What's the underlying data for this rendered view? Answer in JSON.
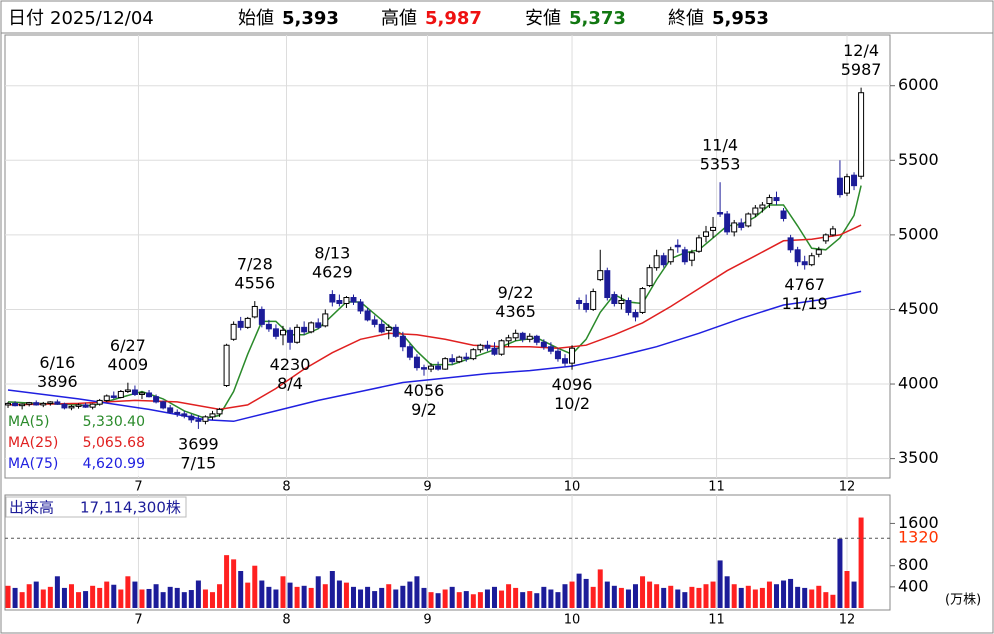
{
  "header": {
    "date_label": "日付",
    "date": "2025/12/04",
    "open_label": "始値",
    "open": "5,393",
    "high_label": "高値",
    "high": "5,987",
    "low_label": "安値",
    "low": "5,373",
    "close_label": "終値",
    "close": "5,953"
  },
  "chart_data": {
    "type": "candlestick",
    "xlim": [
      -0.43,
      125.1
    ],
    "xticks": [
      {
        "value": 18.5,
        "label": "7"
      },
      {
        "value": 39.5,
        "label": "8"
      },
      {
        "value": 59.5,
        "label": "9"
      },
      {
        "value": 80,
        "label": "10"
      },
      {
        "value": 100.5,
        "label": "11"
      },
      {
        "value": 119,
        "label": "12"
      }
    ],
    "ylim": [
      3370,
      6340
    ],
    "yticks": [
      3500,
      4000,
      4500,
      5000,
      5500,
      6000
    ],
    "grid": true,
    "candle_colors": {
      "up": "#ffffff",
      "down": "#1c1c99"
    },
    "ohlc": [
      [
        3860,
        3880,
        3840,
        3870
      ],
      [
        3870,
        3885,
        3850,
        3855
      ],
      [
        3855,
        3870,
        3830,
        3865
      ],
      [
        3865,
        3880,
        3850,
        3875
      ],
      [
        3875,
        3890,
        3855,
        3860
      ],
      [
        3860,
        3880,
        3845,
        3870
      ],
      [
        3870,
        3885,
        3855,
        3880
      ],
      [
        3880,
        3896,
        3860,
        3865
      ],
      [
        3865,
        3875,
        3830,
        3840
      ],
      [
        3840,
        3860,
        3820,
        3850
      ],
      [
        3850,
        3870,
        3835,
        3860
      ],
      [
        3860,
        3875,
        3840,
        3845
      ],
      [
        3845,
        3870,
        3830,
        3865
      ],
      [
        3865,
        3900,
        3855,
        3890
      ],
      [
        3890,
        3930,
        3880,
        3920
      ],
      [
        3920,
        3950,
        3900,
        3910
      ],
      [
        3910,
        3960,
        3905,
        3950
      ],
      [
        3950,
        4009,
        3940,
        3960
      ],
      [
        3960,
        3990,
        3920,
        3930
      ],
      [
        3930,
        3950,
        3900,
        3940
      ],
      [
        3940,
        3960,
        3910,
        3915
      ],
      [
        3915,
        3930,
        3870,
        3880
      ],
      [
        3880,
        3890,
        3830,
        3840
      ],
      [
        3840,
        3860,
        3800,
        3810
      ],
      [
        3810,
        3830,
        3780,
        3800
      ],
      [
        3800,
        3820,
        3770,
        3785
      ],
      [
        3785,
        3800,
        3740,
        3760
      ],
      [
        3760,
        3790,
        3699,
        3750
      ],
      [
        3750,
        3790,
        3730,
        3780
      ],
      [
        3780,
        3820,
        3760,
        3800
      ],
      [
        3800,
        3840,
        3780,
        3830
      ],
      [
        3990,
        4270,
        3980,
        4260
      ],
      [
        4300,
        4420,
        4290,
        4400
      ],
      [
        4420,
        4450,
        4360,
        4380
      ],
      [
        4380,
        4450,
        4370,
        4440
      ],
      [
        4450,
        4556,
        4440,
        4520
      ],
      [
        4500,
        4520,
        4380,
        4400
      ],
      [
        4400,
        4430,
        4350,
        4370
      ],
      [
        4370,
        4400,
        4300,
        4320
      ],
      [
        4330,
        4390,
        4260,
        4360
      ],
      [
        4360,
        4380,
        4230,
        4280
      ],
      [
        4280,
        4400,
        4270,
        4380
      ],
      [
        4380,
        4420,
        4330,
        4350
      ],
      [
        4350,
        4420,
        4340,
        4410
      ],
      [
        4410,
        4440,
        4370,
        4380
      ],
      [
        4390,
        4500,
        4380,
        4470
      ],
      [
        4600,
        4629,
        4520,
        4550
      ],
      [
        4560,
        4600,
        4520,
        4540
      ],
      [
        4540,
        4590,
        4510,
        4580
      ],
      [
        4580,
        4600,
        4530,
        4550
      ],
      [
        4550,
        4570,
        4470,
        4490
      ],
      [
        4490,
        4510,
        4420,
        4430
      ],
      [
        4430,
        4460,
        4380,
        4400
      ],
      [
        4400,
        4430,
        4340,
        4350
      ],
      [
        4360,
        4400,
        4300,
        4380
      ],
      [
        4380,
        4400,
        4310,
        4320
      ],
      [
        4320,
        4350,
        4220,
        4250
      ],
      [
        4250,
        4270,
        4160,
        4180
      ],
      [
        4180,
        4200,
        4090,
        4110
      ],
      [
        4110,
        4130,
        4056,
        4100
      ],
      [
        4100,
        4140,
        4080,
        4120
      ],
      [
        4120,
        4150,
        4090,
        4100
      ],
      [
        4100,
        4180,
        4095,
        4170
      ],
      [
        4170,
        4200,
        4130,
        4150
      ],
      [
        4150,
        4190,
        4140,
        4180
      ],
      [
        4180,
        4210,
        4150,
        4170
      ],
      [
        4170,
        4240,
        4160,
        4230
      ],
      [
        4230,
        4270,
        4210,
        4260
      ],
      [
        4260,
        4290,
        4220,
        4240
      ],
      [
        4240,
        4280,
        4190,
        4200
      ],
      [
        4200,
        4300,
        4190,
        4290
      ],
      [
        4290,
        4330,
        4250,
        4310
      ],
      [
        4310,
        4365,
        4290,
        4340
      ],
      [
        4340,
        4350,
        4280,
        4300
      ],
      [
        4300,
        4340,
        4280,
        4320
      ],
      [
        4320,
        4330,
        4260,
        4280
      ],
      [
        4280,
        4300,
        4230,
        4250
      ],
      [
        4250,
        4280,
        4200,
        4220
      ],
      [
        4220,
        4240,
        4150,
        4170
      ],
      [
        4170,
        4200,
        4120,
        4140
      ],
      [
        4140,
        4260,
        4096,
        4240
      ],
      [
        4560,
        4580,
        4500,
        4540
      ],
      [
        4540,
        4600,
        4480,
        4500
      ],
      [
        4500,
        4640,
        4490,
        4620
      ],
      [
        4700,
        4900,
        4690,
        4760
      ],
      [
        4760,
        4780,
        4560,
        4580
      ],
      [
        4600,
        4620,
        4520,
        4540
      ],
      [
        4540,
        4600,
        4500,
        4560
      ],
      [
        4560,
        4580,
        4460,
        4480
      ],
      [
        4480,
        4500,
        4420,
        4450
      ],
      [
        4480,
        4650,
        4470,
        4640
      ],
      [
        4660,
        4800,
        4650,
        4780
      ],
      [
        4780,
        4900,
        4760,
        4860
      ],
      [
        4860,
        4880,
        4780,
        4800
      ],
      [
        4820,
        4920,
        4800,
        4900
      ],
      [
        4930,
        4970,
        4880,
        4920
      ],
      [
        4900,
        4920,
        4800,
        4820
      ],
      [
        4830,
        4900,
        4790,
        4880
      ],
      [
        4890,
        5000,
        4880,
        4980
      ],
      [
        4990,
        5060,
        4950,
        5020
      ],
      [
        5030,
        5120,
        4980,
        5050
      ],
      [
        5150,
        5353,
        5120,
        5140
      ],
      [
        5140,
        5160,
        5000,
        5020
      ],
      [
        5020,
        5100,
        4990,
        5080
      ],
      [
        5080,
        5110,
        5030,
        5050
      ],
      [
        5060,
        5150,
        5050,
        5140
      ],
      [
        5140,
        5200,
        5120,
        5180
      ],
      [
        5180,
        5220,
        5150,
        5200
      ],
      [
        5210,
        5270,
        5180,
        5250
      ],
      [
        5250,
        5290,
        5200,
        5230
      ],
      [
        5160,
        5180,
        5090,
        5110
      ],
      [
        4980,
        5000,
        4880,
        4900
      ],
      [
        4900,
        4920,
        4790,
        4820
      ],
      [
        4820,
        4860,
        4767,
        4800
      ],
      [
        4800,
        4880,
        4790,
        4860
      ],
      [
        4870,
        4920,
        4850,
        4900
      ],
      [
        4960,
        5010,
        4940,
        5000
      ],
      [
        5000,
        5060,
        4990,
        5040
      ],
      [
        5380,
        5500,
        5250,
        5270
      ],
      [
        5280,
        5410,
        5260,
        5390
      ],
      [
        5400,
        5420,
        5300,
        5330
      ],
      [
        5393,
        5987,
        5373,
        5953
      ]
    ],
    "annotations": [
      {
        "date": "6/16",
        "value": 3896
      },
      {
        "date": "6/27",
        "value": 4009
      },
      {
        "date": "7/15",
        "value": 3699
      },
      {
        "date": "7/28",
        "value": 4556
      },
      {
        "date": "8/4",
        "value": 4230
      },
      {
        "date": "8/13",
        "value": 4629
      },
      {
        "date": "9/2",
        "value": 4056
      },
      {
        "date": "9/22",
        "value": 4365
      },
      {
        "date": "10/2",
        "value": 4096
      },
      {
        "date": "11/4",
        "value": 5353
      },
      {
        "date": "11/19",
        "value": 4767
      },
      {
        "date": "12/4",
        "value": 5987
      }
    ],
    "series": [
      {
        "name": "MA(5)",
        "color": "#2a8a2a",
        "value_label": "5,330.40",
        "last": 5330.4,
        "x": [
          0,
          4,
          8,
          12,
          16,
          19,
          22,
          25,
          28,
          30,
          32,
          34,
          36,
          38,
          40,
          42,
          44,
          46,
          48,
          50,
          52,
          54,
          56,
          58,
          60,
          63,
          66,
          69,
          72,
          75,
          78,
          80,
          82,
          84,
          86,
          88,
          90,
          92,
          94,
          96,
          98,
          100,
          102,
          104,
          106,
          108,
          110,
          112,
          114,
          116,
          118,
          120,
          121
        ],
        "values": [
          3880,
          3870,
          3865,
          3855,
          3910,
          3950,
          3900,
          3820,
          3770,
          3790,
          3950,
          4200,
          4420,
          4420,
          4330,
          4330,
          4370,
          4460,
          4550,
          4550,
          4470,
          4390,
          4330,
          4220,
          4130,
          4130,
          4180,
          4230,
          4290,
          4310,
          4240,
          4200,
          4300,
          4480,
          4600,
          4550,
          4540,
          4700,
          4840,
          4880,
          4900,
          4980,
          5060,
          5070,
          5120,
          5200,
          5200,
          5060,
          4910,
          4900,
          4980,
          5130,
          5330.4
        ]
      },
      {
        "name": "MA(25)",
        "color": "#e02020",
        "value_label": "5,065.68",
        "last": 5065.68,
        "x": [
          0,
          10,
          18,
          24,
          30,
          34,
          38,
          42,
          46,
          50,
          54,
          58,
          62,
          66,
          70,
          74,
          78,
          82,
          86,
          90,
          94,
          98,
          102,
          106,
          110,
          114,
          118,
          121
        ],
        "values": [
          3860,
          3870,
          3890,
          3880,
          3830,
          3860,
          3970,
          4100,
          4210,
          4300,
          4340,
          4330,
          4300,
          4260,
          4250,
          4250,
          4240,
          4260,
          4330,
          4410,
          4520,
          4640,
          4760,
          4860,
          4960,
          4970,
          5000,
          5065.68
        ]
      },
      {
        "name": "MA(75)",
        "color": "#2020e0",
        "value_label": "4,620.99",
        "last": 4620.99,
        "x": [
          0,
          10,
          20,
          28,
          32,
          38,
          44,
          50,
          56,
          62,
          68,
          74,
          80,
          86,
          92,
          98,
          104,
          110,
          116,
          121
        ],
        "values": [
          3960,
          3900,
          3830,
          3760,
          3750,
          3820,
          3890,
          3950,
          4010,
          4040,
          4070,
          4090,
          4120,
          4180,
          4250,
          4340,
          4440,
          4530,
          4570,
          4620.99
        ]
      }
    ],
    "volume": {
      "title": "出来高",
      "total_label": "17,114,300株",
      "unit": "(万株)",
      "ylim": [
        0,
        2100
      ],
      "yticks": [
        400,
        800,
        1600
      ],
      "ref": 1320,
      "ref_color": "#ff3300",
      "colors": {
        "up": "#ff2020",
        "down": "#1c1c99"
      },
      "values": [
        420,
        380,
        300,
        450,
        500,
        350,
        400,
        600,
        380,
        450,
        300,
        320,
        420,
        380,
        500,
        440,
        350,
        600,
        500,
        350,
        360,
        450,
        300,
        400,
        380,
        300,
        340,
        520,
        350,
        300,
        450,
        1000,
        920,
        700,
        480,
        800,
        520,
        400,
        350,
        600,
        480,
        400,
        420,
        380,
        600,
        450,
        700,
        520,
        480,
        400,
        350,
        400,
        320,
        380,
        450,
        350,
        420,
        500,
        600,
        380,
        300,
        280,
        350,
        400,
        300,
        320,
        260,
        300,
        350,
        400,
        330,
        450,
        380,
        300,
        320,
        280,
        400,
        350,
        300,
        450,
        500,
        650,
        550,
        400,
        730,
        500,
        420,
        380,
        350,
        450,
        600,
        500,
        450,
        380,
        420,
        350,
        300,
        400,
        380,
        450,
        500,
        900,
        600,
        450,
        380,
        420,
        350,
        380,
        500,
        450,
        520,
        550,
        400,
        380,
        350,
        420,
        300,
        250,
        1310,
        700,
        500,
        1711.43
      ]
    }
  }
}
